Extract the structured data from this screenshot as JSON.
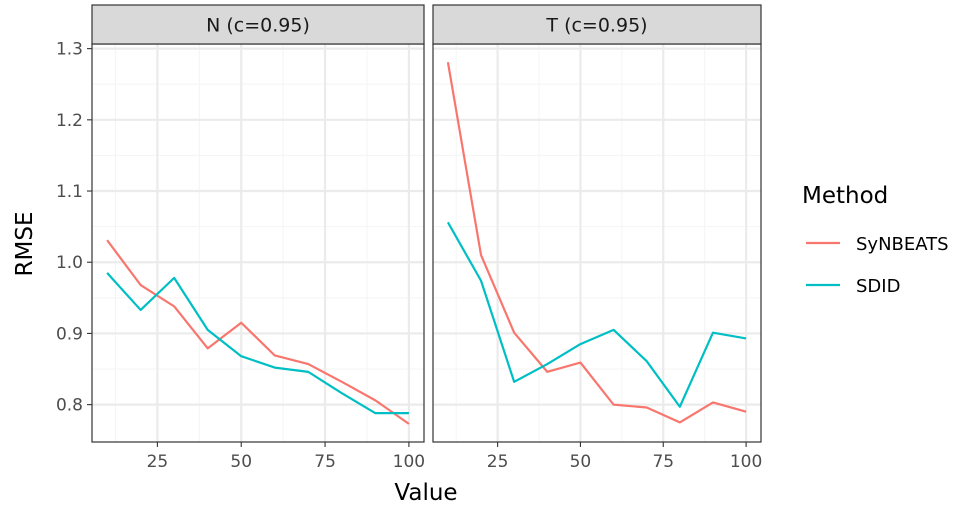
{
  "chart_data": {
    "type": "line",
    "panels": [
      {
        "title": "N (c=0.95)",
        "x": [
          10,
          20,
          30,
          40,
          50,
          60,
          70,
          80,
          90,
          100
        ],
        "series": [
          {
            "name": "SyNBEATS",
            "values": [
              1.031,
              0.968,
              0.938,
              0.879,
              0.915,
              0.869,
              0.857,
              0.832,
              0.806,
              0.773
            ]
          },
          {
            "name": "SDID",
            "values": [
              0.985,
              0.933,
              0.978,
              0.905,
              0.868,
              0.852,
              0.846,
              0.816,
              0.788,
              0.788
            ]
          }
        ]
      },
      {
        "title": "T (c=0.95)",
        "x": [
          10,
          20,
          30,
          40,
          50,
          60,
          70,
          80,
          90,
          100
        ],
        "series": [
          {
            "name": "SyNBEATS",
            "values": [
              1.281,
              1.01,
              0.901,
              0.846,
              0.859,
              0.8,
              0.796,
              0.775,
              0.803,
              0.79
            ]
          },
          {
            "name": "SDID",
            "values": [
              1.056,
              0.974,
              0.832,
              0.857,
              0.885,
              0.905,
              0.861,
              0.797,
              0.901,
              0.893
            ]
          }
        ]
      }
    ],
    "xlabel": "Value",
    "ylabel": "RMSE",
    "xlim": [
      5.5,
      104.5
    ],
    "ylim": [
      0.7475,
      1.3065
    ],
    "x_ticks": [
      25,
      50,
      75,
      100
    ],
    "x_tick_labels": [
      "25",
      "50",
      "75",
      "100"
    ],
    "y_ticks": [
      0.8,
      0.9,
      1.0,
      1.1,
      1.2,
      1.3
    ],
    "y_tick_labels": [
      "0.8",
      "0.9",
      "1.0",
      "1.1",
      "1.2",
      "1.3"
    ],
    "grid": true,
    "legend": {
      "title": "Method",
      "placement": "right",
      "entries": [
        "SyNBEATS",
        "SDID"
      ]
    }
  },
  "colors": {
    "SyNBEATS": "#F8766D",
    "SDID": "#00BFC4",
    "grid_major": "#ebebeb",
    "grid_minor": "#f5f5f5",
    "strip_fill": "#d9d9d9",
    "panel_border": "#333333"
  }
}
